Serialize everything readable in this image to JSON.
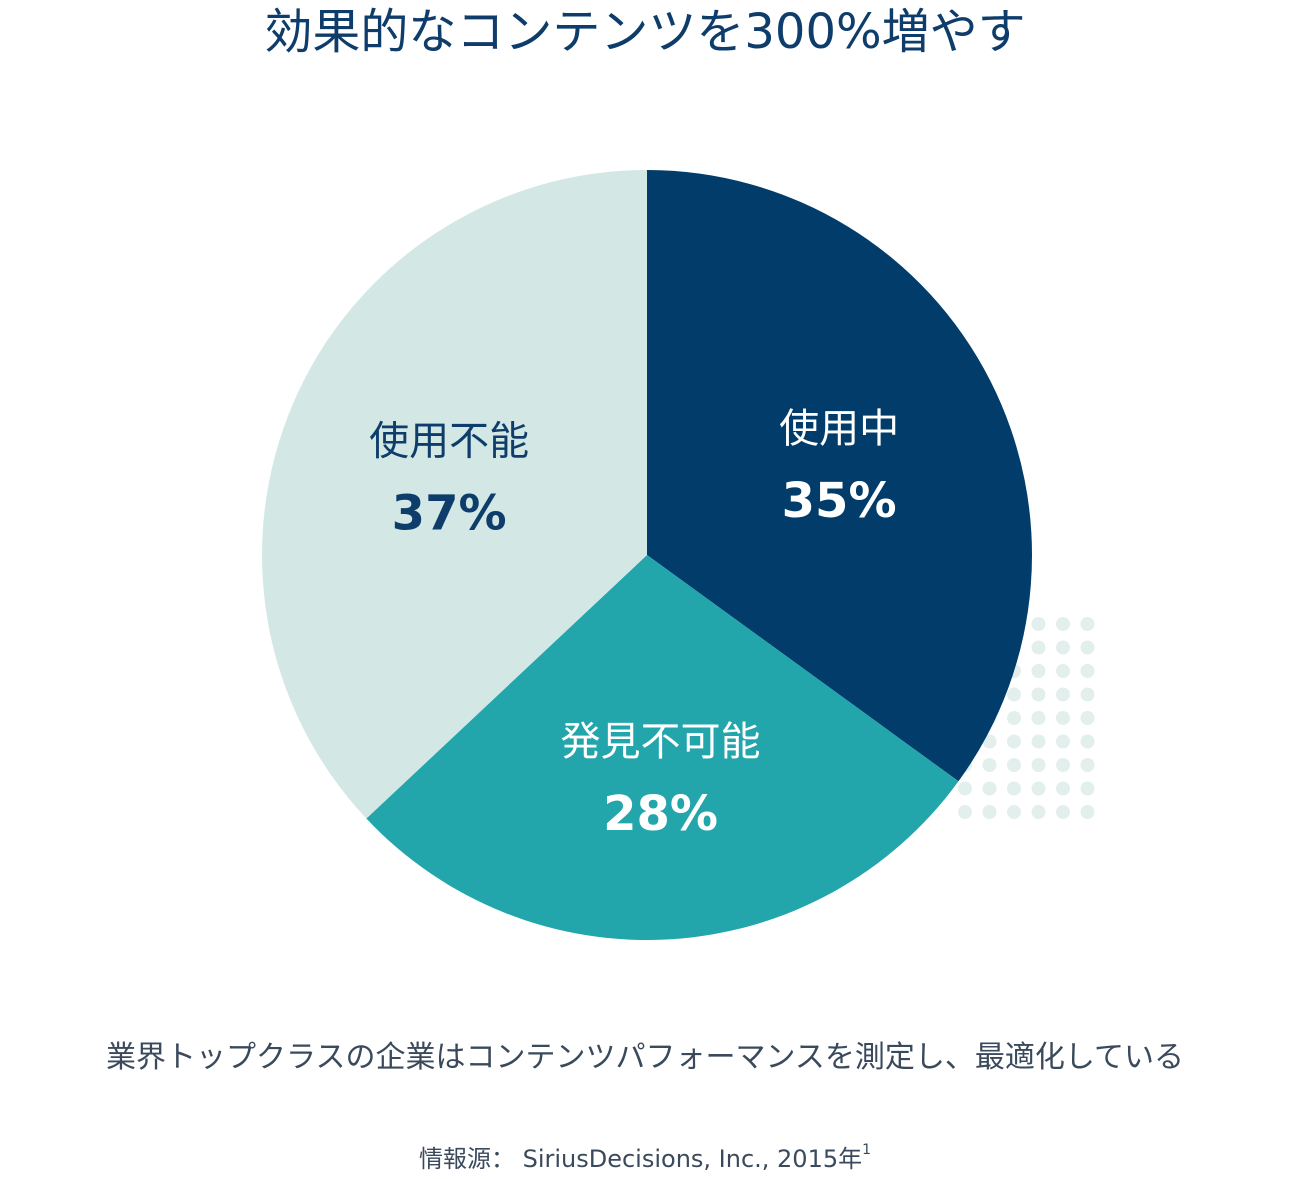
{
  "title": "効果的なコンテンツを300%増やす",
  "caption": "業界トップクラスの企業はコンテンツパフォーマンスを測定し、最適化している",
  "source": {
    "text": "情報源： SiriusDecisions, Inc., 2015年",
    "footnote": "1"
  },
  "colors": {
    "dark_navy": "#013c6a",
    "teal": "#22a6ac",
    "light_mint": "#d3e8e5",
    "dots": "#e3efed"
  },
  "chart_data": {
    "type": "pie",
    "start_angle_deg": 0,
    "direction": "clockwise",
    "slices": [
      {
        "label": "使用中",
        "value": 35,
        "display": "35%",
        "color": "#013c6a",
        "text_color": "#ffffff"
      },
      {
        "label": "発見不可能",
        "value": 28,
        "display": "28%",
        "color": "#22a6ac",
        "text_color": "#ffffff"
      },
      {
        "label": "使用不能",
        "value": 37,
        "display": "37%",
        "color": "#d3e8e5",
        "text_color": "#0f3d6b"
      }
    ]
  }
}
